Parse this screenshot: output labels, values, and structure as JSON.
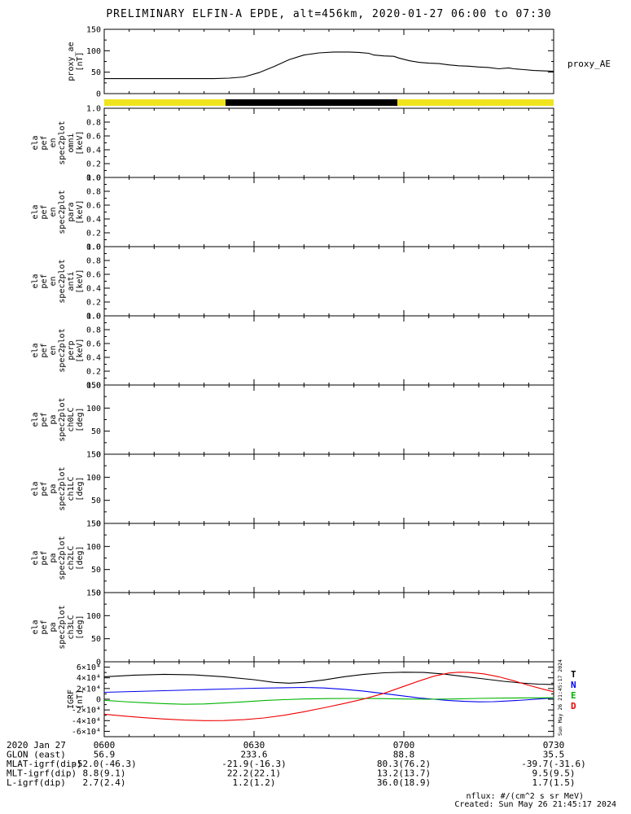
{
  "title": "PRELIMINARY ELFIN-A EPDE, alt=456km, 2020-01-27 06:00 to 07:30",
  "right_labels": {
    "proxy_ae": "proxy_AE"
  },
  "vertical_timestamp": "Sun May 26 21:45:17 2024",
  "footer": {
    "nflux": "nflux: #/(cm^2 s sr MeV)",
    "created": "Created: Sun May 26 21:45:17 2024"
  },
  "time_axis": {
    "minutes": [
      0,
      30,
      60,
      90
    ],
    "labels": [
      "0600",
      "0630",
      "0700",
      "0730"
    ]
  },
  "igrf_legend": [
    {
      "label": "T",
      "color": "#000000"
    },
    {
      "label": "N",
      "color": "#0000ee"
    },
    {
      "label": "E",
      "color": "#00b400"
    },
    {
      "label": "D",
      "color": "#ee0000"
    }
  ],
  "ephemeris": {
    "rows": [
      {
        "label": "2020 Jan 27",
        "values": [
          "0600",
          "0630",
          "0700",
          "0730"
        ]
      },
      {
        "label": "GLON (east)",
        "values": [
          "56.9",
          "233.6",
          "88.8",
          "35.5"
        ]
      },
      {
        "label": "MLAT-igrf(dip)",
        "values": [
          "-52.0(-46.3)",
          "-21.9(-16.3)",
          "80.3(76.2)",
          "-39.7(-31.6)"
        ]
      },
      {
        "label": "MLT-igrf(dip)",
        "values": [
          "8.8(9.1)",
          "22.2(22.1)",
          "13.2(13.7)",
          "9.5(9.5)"
        ]
      },
      {
        "label": "L-igrf(dip)",
        "values": [
          "2.7(2.4)",
          "1.2(1.2)",
          "36.0(18.9)",
          "1.7(1.5)"
        ]
      }
    ]
  },
  "chart_data": {
    "type": "multi-panel-time-series",
    "time_range": [
      "2020-01-27 06:00",
      "2020-01-27 07:30"
    ],
    "x_unit": "minutes since 06:00 UT",
    "science_bar": {
      "segments": [
        {
          "label": "window",
          "color": "#f0e41e",
          "start_min": 0,
          "end_min": 90
        },
        {
          "label": "science-zone",
          "color": "#000000",
          "start_min": 24.3,
          "end_min": 58.7
        }
      ]
    },
    "panels": [
      {
        "id": "proxy_ae",
        "type": "line",
        "label_lines": [
          "proxy_ae",
          "[nT]"
        ],
        "ylim": [
          0,
          150
        ],
        "yminor": 25,
        "yticks": [
          {
            "v": 0,
            "t": "0"
          },
          {
            "v": 50,
            "t": "50"
          },
          {
            "v": 100,
            "t": "100"
          },
          {
            "v": 150,
            "t": "150"
          }
        ],
        "series": [
          {
            "name": "proxy_AE",
            "color": "#000000",
            "points": [
              [
                0,
                35
              ],
              [
                6,
                35
              ],
              [
                12,
                35
              ],
              [
                18,
                35
              ],
              [
                22,
                35
              ],
              [
                25,
                36
              ],
              [
                28,
                39
              ],
              [
                31,
                49
              ],
              [
                34,
                63
              ],
              [
                37,
                79
              ],
              [
                40,
                90
              ],
              [
                43,
                95
              ],
              [
                46,
                97
              ],
              [
                49,
                97
              ],
              [
                51,
                96
              ],
              [
                53,
                94
              ],
              [
                54,
                90
              ],
              [
                56,
                88
              ],
              [
                58,
                87
              ],
              [
                59,
                83
              ],
              [
                61,
                77
              ],
              [
                63,
                73
              ],
              [
                65,
                71
              ],
              [
                67,
                70
              ],
              [
                69,
                67
              ],
              [
                71,
                65
              ],
              [
                73,
                64
              ],
              [
                75,
                62
              ],
              [
                77,
                61
              ],
              [
                79,
                58
              ],
              [
                81,
                60
              ],
              [
                82,
                58
              ],
              [
                84,
                56
              ],
              [
                86,
                54
              ],
              [
                88,
                53
              ],
              [
                90,
                52
              ]
            ]
          }
        ]
      },
      {
        "id": "en_omni",
        "type": "spectrogram-empty",
        "label_lines": [
          "ela",
          "pef",
          "en",
          "spec2plot",
          "omni",
          "[keV]"
        ],
        "ylim": [
          0,
          1
        ],
        "yminor": 0.1,
        "yticks": [
          {
            "v": 0,
            "t": "0.0"
          },
          {
            "v": 0.2,
            "t": "0.2"
          },
          {
            "v": 0.4,
            "t": "0.4"
          },
          {
            "v": 0.6,
            "t": "0.6"
          },
          {
            "v": 0.8,
            "t": "0.8"
          },
          {
            "v": 1,
            "t": "1.0"
          }
        ],
        "series": []
      },
      {
        "id": "en_para",
        "type": "spectrogram-empty",
        "label_lines": [
          "ela",
          "pef",
          "en",
          "spec2plot",
          "para",
          "[keV]"
        ],
        "ylim": [
          0,
          1
        ],
        "yminor": 0.1,
        "yticks": [
          {
            "v": 0,
            "t": "0.0"
          },
          {
            "v": 0.2,
            "t": "0.2"
          },
          {
            "v": 0.4,
            "t": "0.4"
          },
          {
            "v": 0.6,
            "t": "0.6"
          },
          {
            "v": 0.8,
            "t": "0.8"
          },
          {
            "v": 1,
            "t": "1.0"
          }
        ],
        "series": []
      },
      {
        "id": "en_anti",
        "type": "spectrogram-empty",
        "label_lines": [
          "ela",
          "pef",
          "en",
          "spec2plot",
          "anti",
          "[keV]"
        ],
        "ylim": [
          0,
          1
        ],
        "yminor": 0.1,
        "yticks": [
          {
            "v": 0,
            "t": "0.0"
          },
          {
            "v": 0.2,
            "t": "0.2"
          },
          {
            "v": 0.4,
            "t": "0.4"
          },
          {
            "v": 0.6,
            "t": "0.6"
          },
          {
            "v": 0.8,
            "t": "0.8"
          },
          {
            "v": 1,
            "t": "1.0"
          }
        ],
        "series": []
      },
      {
        "id": "en_perp",
        "type": "spectrogram-empty",
        "label_lines": [
          "ela",
          "pef",
          "en",
          "spec2plot",
          "perp",
          "[keV]"
        ],
        "ylim": [
          0,
          1
        ],
        "yminor": 0.1,
        "yticks": [
          {
            "v": 0,
            "t": "0.0"
          },
          {
            "v": 0.2,
            "t": "0.2"
          },
          {
            "v": 0.4,
            "t": "0.4"
          },
          {
            "v": 0.6,
            "t": "0.6"
          },
          {
            "v": 0.8,
            "t": "0.8"
          },
          {
            "v": 1,
            "t": "1.0"
          }
        ],
        "series": []
      },
      {
        "id": "pa_ch0",
        "type": "spectrogram-empty",
        "label_lines": [
          "ela",
          "pef",
          "pa",
          "spec2plot",
          "ch0LC",
          "[deg]"
        ],
        "ylim": [
          0,
          150
        ],
        "yminor": 25,
        "yticks": [
          {
            "v": 0,
            "t": "0"
          },
          {
            "v": 50,
            "t": "50"
          },
          {
            "v": 100,
            "t": "100"
          },
          {
            "v": 150,
            "t": "150"
          }
        ],
        "series": []
      },
      {
        "id": "pa_ch1",
        "type": "spectrogram-empty",
        "label_lines": [
          "ela",
          "pef",
          "pa",
          "spec2plot",
          "ch1LC",
          "[deg]"
        ],
        "ylim": [
          0,
          150
        ],
        "yminor": 25,
        "yticks": [
          {
            "v": 0,
            "t": "0"
          },
          {
            "v": 50,
            "t": "50"
          },
          {
            "v": 100,
            "t": "100"
          },
          {
            "v": 150,
            "t": "150"
          }
        ],
        "series": []
      },
      {
        "id": "pa_ch2",
        "type": "spectrogram-empty",
        "label_lines": [
          "ela",
          "pef",
          "pa",
          "spec2plot",
          "ch2LC",
          "[deg]"
        ],
        "ylim": [
          0,
          150
        ],
        "yminor": 25,
        "yticks": [
          {
            "v": 0,
            "t": "0"
          },
          {
            "v": 50,
            "t": "50"
          },
          {
            "v": 100,
            "t": "100"
          },
          {
            "v": 150,
            "t": "150"
          }
        ],
        "series": []
      },
      {
        "id": "pa_ch3",
        "type": "spectrogram-empty",
        "label_lines": [
          "ela",
          "pef",
          "pa",
          "spec2plot",
          "ch3LC",
          "[deg]"
        ],
        "ylim": [
          0,
          150
        ],
        "yminor": 25,
        "yticks": [
          {
            "v": 0,
            "t": "0"
          },
          {
            "v": 50,
            "t": "50"
          },
          {
            "v": 100,
            "t": "100"
          },
          {
            "v": 150,
            "t": "150"
          }
        ],
        "series": []
      },
      {
        "id": "igrf",
        "type": "line",
        "label_lines": [
          "IGRF",
          "[nT]"
        ],
        "ylim": [
          -70000,
          70000
        ],
        "yminor": 10000,
        "yticks": [
          {
            "v": -60000,
            "t": "-6×10⁴"
          },
          {
            "v": -40000,
            "t": "-4×10⁴"
          },
          {
            "v": -20000,
            "t": "-2×10⁴"
          },
          {
            "v": 0,
            "t": "0"
          },
          {
            "v": 20000,
            "t": "2×10⁴"
          },
          {
            "v": 40000,
            "t": "4×10⁴"
          },
          {
            "v": 60000,
            "t": "6×10⁴"
          }
        ],
        "series": [
          {
            "name": "T",
            "color": "#000000",
            "points": [
              [
                0,
                42000
              ],
              [
                6,
                45000
              ],
              [
                12,
                46500
              ],
              [
                18,
                45500
              ],
              [
                24,
                42000
              ],
              [
                30,
                36500
              ],
              [
                34,
                31500
              ],
              [
                37,
                30000
              ],
              [
                40,
                31500
              ],
              [
                44,
                36000
              ],
              [
                48,
                42000
              ],
              [
                52,
                46500
              ],
              [
                56,
                49500
              ],
              [
                60,
                50500
              ],
              [
                64,
                50000
              ],
              [
                68,
                47000
              ],
              [
                72,
                42500
              ],
              [
                76,
                38000
              ],
              [
                80,
                33500
              ],
              [
                84,
                30000
              ],
              [
                87,
                28200
              ],
              [
                90,
                27500
              ]
            ]
          },
          {
            "name": "N",
            "color": "#0000ee",
            "points": [
              [
                0,
                13000
              ],
              [
                6,
                14500
              ],
              [
                12,
                16000
              ],
              [
                18,
                17500
              ],
              [
                24,
                19000
              ],
              [
                30,
                20500
              ],
              [
                36,
                21500
              ],
              [
                40,
                22000
              ],
              [
                44,
                21000
              ],
              [
                48,
                18500
              ],
              [
                52,
                15000
              ],
              [
                56,
                10500
              ],
              [
                60,
                6000
              ],
              [
                63,
                2500
              ],
              [
                66,
                0
              ],
              [
                69,
                -2500
              ],
              [
                72,
                -4000
              ],
              [
                75,
                -4800
              ],
              [
                78,
                -4500
              ],
              [
                81,
                -3200
              ],
              [
                84,
                -1500
              ],
              [
                87,
                500
              ],
              [
                90,
                2500
              ]
            ]
          },
          {
            "name": "E",
            "color": "#00b400",
            "points": [
              [
                0,
                -2000
              ],
              [
                4,
                -4500
              ],
              [
                8,
                -6500
              ],
              [
                12,
                -8200
              ],
              [
                16,
                -9500
              ],
              [
                20,
                -8800
              ],
              [
                24,
                -7000
              ],
              [
                28,
                -4800
              ],
              [
                32,
                -2500
              ],
              [
                36,
                -800
              ],
              [
                40,
                500
              ],
              [
                45,
                1200
              ],
              [
                50,
                1500
              ],
              [
                55,
                1200
              ],
              [
                60,
                500
              ],
              [
                65,
                0
              ],
              [
                70,
                500
              ],
              [
                75,
                1500
              ],
              [
                80,
                2200
              ],
              [
                85,
                2600
              ],
              [
                90,
                2800
              ]
            ]
          },
          {
            "name": "D",
            "color": "#ee0000",
            "points": [
              [
                0,
                -28000
              ],
              [
                4,
                -31500
              ],
              [
                8,
                -34500
              ],
              [
                12,
                -37000
              ],
              [
                16,
                -39000
              ],
              [
                20,
                -40000
              ],
              [
                24,
                -39800
              ],
              [
                28,
                -38200
              ],
              [
                32,
                -35000
              ],
              [
                36,
                -30000
              ],
              [
                40,
                -23500
              ],
              [
                44,
                -16000
              ],
              [
                48,
                -8000
              ],
              [
                52,
                500
              ],
              [
                56,
                11000
              ],
              [
                60,
                24000
              ],
              [
                63,
                34000
              ],
              [
                66,
                43000
              ],
              [
                69,
                49000
              ],
              [
                71,
                50500
              ],
              [
                73,
                50000
              ],
              [
                76,
                47500
              ],
              [
                79,
                42000
              ],
              [
                82,
                34500
              ],
              [
                85,
                26000
              ],
              [
                88,
                18500
              ],
              [
                90,
                14000
              ]
            ]
          }
        ]
      }
    ]
  }
}
